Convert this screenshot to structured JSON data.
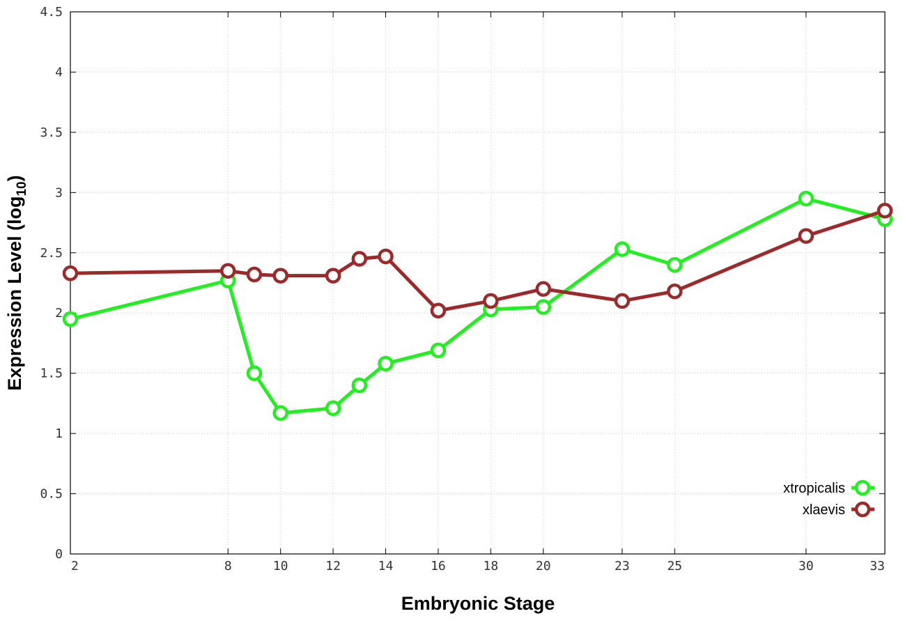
{
  "chart_data": {
    "type": "line",
    "xlabel": "Embryonic Stage",
    "ylabel_main": "Expression Level (log",
    "ylabel_sub": "10",
    "ylabel_close": ")",
    "xlim": [
      2,
      33
    ],
    "ylim": [
      0,
      4.5
    ],
    "x_ticks": [
      2,
      8,
      10,
      12,
      14,
      16,
      18,
      20,
      23,
      25,
      30,
      33
    ],
    "x_tick_labels": [
      "2",
      "8",
      "10",
      "12",
      "14",
      "16",
      "18",
      "20",
      "23",
      "25",
      "30",
      "33"
    ],
    "y_ticks": [
      0,
      0.5,
      1,
      1.5,
      2,
      2.5,
      3,
      3.5,
      4,
      4.5
    ],
    "y_tick_labels": [
      "0",
      "0.5",
      "1",
      "1.5",
      "2",
      "2.5",
      "3",
      "3.5",
      "4",
      "4.5"
    ],
    "grid": true,
    "legend_position": "bottom-right",
    "series": [
      {
        "name": "xtropicalis",
        "color": "#22ee22",
        "x": [
          2,
          8,
          9,
          10,
          12,
          13,
          14,
          16,
          18,
          20,
          23,
          25,
          30,
          33
        ],
        "y": [
          1.95,
          2.27,
          1.5,
          1.17,
          1.21,
          1.4,
          1.58,
          1.69,
          2.03,
          2.05,
          2.53,
          2.4,
          2.95,
          2.78
        ]
      },
      {
        "name": "xlaevis",
        "color": "#9b2a2a",
        "x": [
          2,
          8,
          9,
          10,
          12,
          13,
          14,
          16,
          18,
          20,
          23,
          25,
          30,
          33
        ],
        "y": [
          2.33,
          2.35,
          2.32,
          2.31,
          2.31,
          2.45,
          2.47,
          2.02,
          2.1,
          2.2,
          2.1,
          2.18,
          2.64,
          2.85
        ]
      }
    ]
  }
}
